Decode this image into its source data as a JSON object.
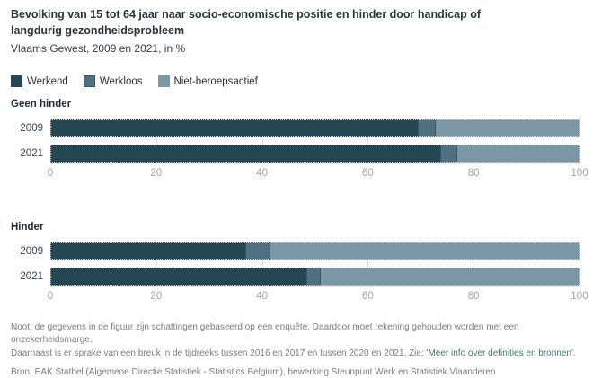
{
  "header": {
    "title": "Bevolking van 15 tot 64 jaar naar socio-economische positie en hinder door handicap of langdurig gezondheidsprobleem",
    "subtitle": "Vlaams Gewest, 2009 en 2021, in %"
  },
  "legend": [
    {
      "label": "Werkend",
      "color": "#254754"
    },
    {
      "label": "Werkloos",
      "color": "#4f7082"
    },
    {
      "label": "Niet-beroepsactief",
      "color": "#7b96a4"
    }
  ],
  "chart_data": {
    "type": "bar",
    "orientation": "horizontal",
    "stacked": true,
    "unit": "%",
    "xlim": [
      0,
      100
    ],
    "xticks": [
      0,
      20,
      40,
      60,
      80,
      100
    ],
    "series_names": [
      "Werkend",
      "Werkloos",
      "Niet-beroepsactief"
    ],
    "groups": [
      {
        "label": "Geen hinder",
        "rows": [
          {
            "year": "2009",
            "values": [
              69.5,
              3.4,
              27.1
            ]
          },
          {
            "year": "2021",
            "values": [
              73.7,
              3.2,
              23.1
            ]
          }
        ]
      },
      {
        "label": "Hinder",
        "rows": [
          {
            "year": "2009",
            "values": [
              36.8,
              4.8,
              58.4
            ]
          },
          {
            "year": "2021",
            "values": [
              48.4,
              2.7,
              48.9
            ]
          }
        ]
      }
    ],
    "grid": "vertical-light",
    "legend_position": "top-left"
  },
  "footer": {
    "note_line1": "Noot: de gegevens in de figuur zijn schattingen gebaseerd op een enquête. Daardoor moet rekening gehouden worden met een onzekerheidsmarge.",
    "note_line2_prefix": "Daarnaast is er sprake van een breuk in de tijdreeks tussen 2016 en 2017 en tussen 2020 en 2021. Zie: ",
    "note_link": "'Meer info over definities en bronnen'",
    "note_suffix": ".",
    "source": "Bron: EAK Statbel (Algemene Directie Statistiek - Statistics Belgium), bewerking Steunpunt Werk en Statistiek Vlaanderen"
  },
  "colors": {
    "title_text": "#2b343b",
    "axis_text": "#a5a5a5",
    "note_text": "#7d7d7d",
    "link_text": "#3c7b6b",
    "gridline": "#dcdcdc"
  }
}
